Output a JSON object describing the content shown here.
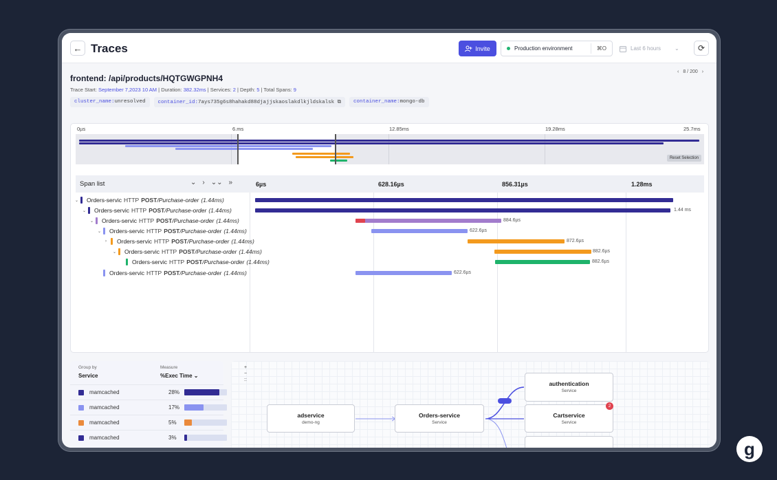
{
  "header": {
    "title": "Traces",
    "invite_label": "Invite",
    "environment": "Production environment",
    "shortcut": "⌘O",
    "time_range": "Last 6 hours"
  },
  "trace": {
    "title": "frontend: /api/products/HQTGWGPNH4",
    "pager": "8 / 200",
    "start_label": "Trace Start:",
    "start": "September 7,2023 10 AM",
    "duration_label": "Duration:",
    "duration": "382.32ms",
    "services_label": "Services:",
    "services": "2",
    "depth_label": "Depth:",
    "depth": "5",
    "spans_label": "Total Spans:",
    "spans": "9",
    "tags": [
      {
        "key": "cluster_name:",
        "value": "unresolved"
      },
      {
        "key": "container_id:",
        "value": "7ays735g6s8hahakd88djajjskaoslakdlkjldskalsk"
      },
      {
        "key": "container_name:",
        "value": "mongo-db"
      }
    ]
  },
  "minimap": {
    "ticks": [
      "0µs",
      "6.ms",
      "12.85ms",
      "19.28ms",
      "25.7ms"
    ],
    "reset_label": "Reset Selection"
  },
  "spanlist": {
    "label": "Span list",
    "ticks": [
      "6µs",
      "628.16µs",
      "856.31µs",
      "1.28ms"
    ],
    "rows": [
      {
        "service": "Orders-servic",
        "method": "HTTP",
        "verb": "POST",
        "path": "/Purchase-order",
        "dur": "(1.44ms)",
        "color": "#322c94",
        "bar_label": ""
      },
      {
        "service": "Orders-servic",
        "method": "HTTP",
        "verb": "POST",
        "path": "/Purchase-order",
        "dur": "(1.44ms)",
        "color": "#322c94",
        "bar_label": "1.44 ms"
      },
      {
        "service": "Orders-servic",
        "method": "HTTP",
        "verb": "POST",
        "path": "/Purchase-order",
        "dur": "(1.44ms)",
        "color": "#a27ccc",
        "bar_label": "884.6µs"
      },
      {
        "service": "Orders-servic",
        "method": "HTTP",
        "verb": "POST",
        "path": "/Purchase-order",
        "dur": "(1.44ms)",
        "color": "#8a93f0",
        "bar_label": "622.6µs"
      },
      {
        "service": "Orders-servic",
        "method": "HTTP",
        "verb": "POST",
        "path": "/Purchase-order",
        "dur": "(1.44ms)",
        "color": "#f39a1e",
        "bar_label": "872.6µs"
      },
      {
        "service": "Orders-servic",
        "method": "HTTP",
        "verb": "POST",
        "path": "/Purchase-order",
        "dur": "(1.44ms)",
        "color": "#f39a1e",
        "bar_label": "882.6µs"
      },
      {
        "service": "Orders-servic",
        "method": "HTTP",
        "verb": "POST",
        "path": "/Purchase-order",
        "dur": "(1.44ms)",
        "color": "#1fb36b",
        "bar_label": "882.6µs"
      },
      {
        "service": "Orders-servic",
        "method": "HTTP",
        "verb": "POST",
        "path": "/Purchase-order",
        "dur": "(1.44ms)",
        "color": "#8a93f0",
        "bar_label": "622.6µs"
      }
    ]
  },
  "group": {
    "group_by_label": "Group by",
    "group_by_value": "Service",
    "measure_label": "Measure",
    "measure_value": "%Exec Time",
    "rows": [
      {
        "name": "mamcached",
        "pct": "28%",
        "value": 0.82,
        "color": "#322c94"
      },
      {
        "name": "mamcached",
        "pct": "17%",
        "value": 0.45,
        "color": "#8a93f0"
      },
      {
        "name": "mamcached",
        "pct": "5%",
        "value": 0.17,
        "color": "#ea8a3c"
      },
      {
        "name": "mamcached",
        "pct": "3%",
        "value": 0.06,
        "color": "#322c94"
      }
    ]
  },
  "graph": {
    "zoom_in": "+",
    "zoom_out": "−",
    "fit": "::",
    "nodes": {
      "adservice": {
        "title": "adservice",
        "sub": "demo-ng"
      },
      "orders": {
        "title": "Orders-service",
        "sub": "Service"
      },
      "auth": {
        "title": "authentication",
        "sub": "Service"
      },
      "cart": {
        "title": "Cartservice",
        "sub": "Service",
        "badge": "2"
      }
    }
  },
  "brand_letter": "g"
}
